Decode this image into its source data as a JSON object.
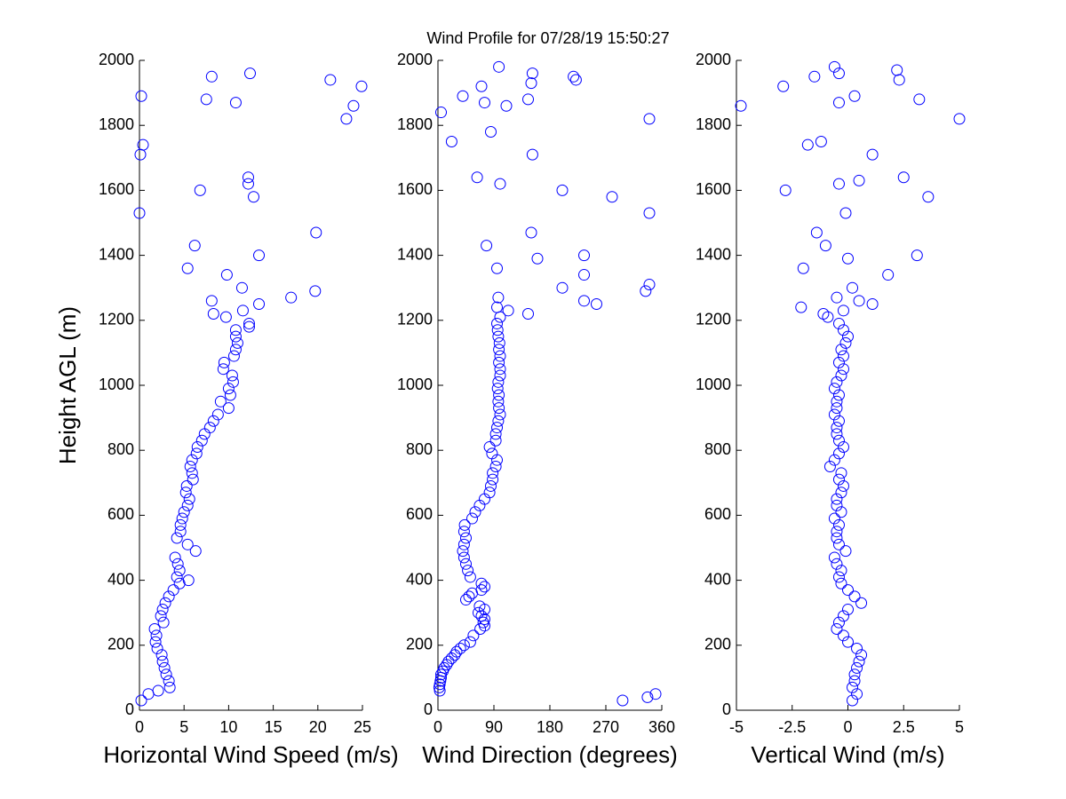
{
  "title": "Wind Profile for  07/28/19 15:50:27",
  "chart_data": [
    {
      "type": "scatter",
      "xlabel": "Horizontal Wind Speed (m/s)",
      "ylabel": "Height AGL (m)",
      "color": "#0000ff",
      "xlim": [
        0,
        25
      ],
      "xticks": [
        0,
        5,
        10,
        15,
        20,
        25
      ],
      "ylim": [
        0,
        2000
      ],
      "yticks": [
        0,
        200,
        400,
        600,
        800,
        1000,
        1200,
        1400,
        1600,
        1800,
        2000
      ],
      "x": [
        0.2,
        1,
        2.1,
        3.4,
        3.3,
        3,
        2.8,
        2.6,
        2.5,
        2,
        1.8,
        1.9,
        1.7,
        2.7,
        2.4,
        2.6,
        2.9,
        3.3,
        3.8,
        4.5,
        5.5,
        4.2,
        4.5,
        4.3,
        4,
        6.3,
        5.4,
        4.2,
        4.6,
        4.6,
        4.8,
        5,
        5.4,
        5.6,
        5.2,
        5.3,
        6,
        5.9,
        5.7,
        5.9,
        6.4,
        6.5,
        7,
        7.3,
        7.9,
        8.3,
        8.8,
        10,
        9.1,
        10.2,
        10,
        10.5,
        10.4,
        9.4,
        9.5,
        10.6,
        10.8,
        11,
        10.8,
        10.8,
        12.3,
        12.3,
        9.7,
        8.3,
        11.6,
        13.4,
        8.1,
        17,
        19.7,
        11.5,
        9.8,
        5.4,
        13.4,
        6.2,
        19.8,
        0,
        12.8,
        6.8,
        12.2,
        12.2,
        0.1,
        0.4,
        23.2,
        24,
        10.8,
        7.5,
        0.2,
        24.9,
        21.4,
        8.1,
        12.4
      ],
      "values": [
        30,
        50,
        60,
        70,
        90,
        110,
        130,
        150,
        170,
        190,
        210,
        230,
        250,
        270,
        290,
        310,
        330,
        350,
        370,
        390,
        400,
        410,
        430,
        450,
        470,
        490,
        510,
        530,
        550,
        570,
        590,
        610,
        630,
        650,
        670,
        690,
        710,
        730,
        750,
        770,
        790,
        810,
        830,
        850,
        870,
        890,
        910,
        930,
        950,
        970,
        990,
        1010,
        1030,
        1050,
        1070,
        1090,
        1110,
        1130,
        1150,
        1170,
        1180,
        1190,
        1210,
        1220,
        1230,
        1250,
        1260,
        1270,
        1290,
        1300,
        1340,
        1360,
        1400,
        1430,
        1470,
        1530,
        1580,
        1600,
        1620,
        1640,
        1710,
        1740,
        1820,
        1860,
        1870,
        1880,
        1890,
        1920,
        1940,
        1950,
        1960
      ]
    },
    {
      "type": "scatter",
      "xlabel": "Wind Direction (degrees)",
      "color": "#0000ff",
      "xlim": [
        0,
        360
      ],
      "xticks": [
        0,
        90,
        180,
        270,
        360
      ],
      "ylim": [
        0,
        2000
      ],
      "yticks": [
        0,
        200,
        400,
        600,
        800,
        1000,
        1200,
        1400,
        1600,
        1800,
        2000
      ],
      "x": [
        297,
        337,
        350,
        3,
        2,
        3,
        4,
        5,
        5,
        8,
        10,
        14,
        17,
        22,
        27,
        30,
        36,
        42,
        52,
        57,
        68,
        75,
        73,
        75,
        70,
        65,
        75,
        67,
        45,
        50,
        55,
        70,
        75,
        70,
        52,
        48,
        45,
        42,
        40,
        42,
        45,
        42,
        43,
        55,
        60,
        67,
        75,
        83,
        85,
        88,
        88,
        93,
        95,
        87,
        83,
        93,
        93,
        95,
        97,
        100,
        98,
        97,
        98,
        96,
        97,
        100,
        100,
        98,
        100,
        98,
        99,
        97,
        96,
        95,
        100,
        145,
        113,
        95,
        255,
        235,
        97,
        334,
        200,
        340,
        235,
        95,
        160,
        235,
        78,
        150,
        340,
        280,
        200,
        100,
        63,
        152,
        22,
        85,
        340,
        5,
        110,
        75,
        145,
        40,
        70,
        150,
        222,
        218,
        152,
        98
      ],
      "values": [
        30,
        40,
        50,
        60,
        70,
        80,
        90,
        100,
        110,
        120,
        130,
        140,
        150,
        160,
        170,
        180,
        190,
        200,
        210,
        230,
        250,
        260,
        270,
        280,
        290,
        300,
        310,
        320,
        340,
        350,
        360,
        370,
        380,
        390,
        410,
        430,
        450,
        470,
        490,
        510,
        530,
        550,
        570,
        590,
        610,
        630,
        650,
        670,
        690,
        710,
        730,
        750,
        770,
        790,
        810,
        830,
        850,
        870,
        890,
        910,
        930,
        950,
        970,
        990,
        1010,
        1030,
        1050,
        1070,
        1090,
        1110,
        1130,
        1150,
        1170,
        1190,
        1210,
        1220,
        1230,
        1240,
        1250,
        1260,
        1270,
        1290,
        1300,
        1310,
        1340,
        1360,
        1390,
        1400,
        1430,
        1470,
        1530,
        1580,
        1600,
        1620,
        1640,
        1710,
        1750,
        1780,
        1820,
        1840,
        1860,
        1870,
        1880,
        1890,
        1920,
        1930,
        1940,
        1950,
        1960,
        1980
      ]
    },
    {
      "type": "scatter",
      "xlabel": "Vertical Wind (m/s)",
      "color": "#0000ff",
      "xlim": [
        -5,
        5
      ],
      "xticks": [
        -5,
        -2.5,
        0,
        2.5,
        5
      ],
      "ylim": [
        0,
        2000
      ],
      "yticks": [
        0,
        200,
        400,
        600,
        800,
        1000,
        1200,
        1400,
        1600,
        1800,
        2000
      ],
      "x": [
        0.2,
        0.4,
        0.2,
        0.3,
        0.3,
        0.4,
        0.5,
        0.6,
        0.4,
        0,
        -0.2,
        -0.5,
        -0.4,
        -0.2,
        0,
        0.6,
        0.3,
        0,
        -0.3,
        -0.4,
        -0.3,
        -0.5,
        -0.6,
        -0.1,
        -0.4,
        -0.5,
        -0.5,
        -0.4,
        -0.6,
        -0.3,
        -0.5,
        -0.5,
        -0.3,
        -0.2,
        -0.4,
        -0.3,
        -0.8,
        -0.6,
        -0.4,
        -0.2,
        -0.4,
        -0.5,
        -0.5,
        -0.4,
        -0.6,
        -0.5,
        -0.5,
        -0.4,
        -0.6,
        -0.5,
        -0.3,
        -0.2,
        -0.4,
        -0.2,
        -0.3,
        -0.1,
        0,
        -0.2,
        -0.4,
        -0.9,
        -1.1,
        -0.2,
        -2.1,
        1.1,
        0.5,
        -0.5,
        0.2,
        1.8,
        -2,
        0,
        3.1,
        -1,
        -1.4,
        -0.1,
        3.6,
        -2.8,
        -0.4,
        0.5,
        2.5,
        1.1,
        -1.8,
        -1.2,
        5,
        -4.8,
        -0.4,
        3.2,
        0.3,
        -2.9,
        2.3,
        -1.5,
        -0.4,
        2.2,
        -0.6
      ],
      "values": [
        30,
        50,
        70,
        90,
        110,
        130,
        150,
        170,
        190,
        210,
        230,
        250,
        270,
        290,
        310,
        330,
        350,
        370,
        390,
        410,
        430,
        450,
        470,
        490,
        510,
        530,
        550,
        570,
        590,
        610,
        630,
        650,
        670,
        690,
        710,
        730,
        750,
        770,
        790,
        810,
        830,
        850,
        870,
        890,
        910,
        930,
        950,
        970,
        990,
        1010,
        1030,
        1050,
        1070,
        1090,
        1110,
        1130,
        1150,
        1170,
        1190,
        1210,
        1220,
        1230,
        1240,
        1250,
        1260,
        1270,
        1300,
        1340,
        1360,
        1390,
        1400,
        1430,
        1470,
        1530,
        1580,
        1600,
        1620,
        1630,
        1640,
        1710,
        1740,
        1750,
        1820,
        1860,
        1870,
        1880,
        1890,
        1920,
        1940,
        1950,
        1960,
        1970,
        1980
      ]
    }
  ]
}
